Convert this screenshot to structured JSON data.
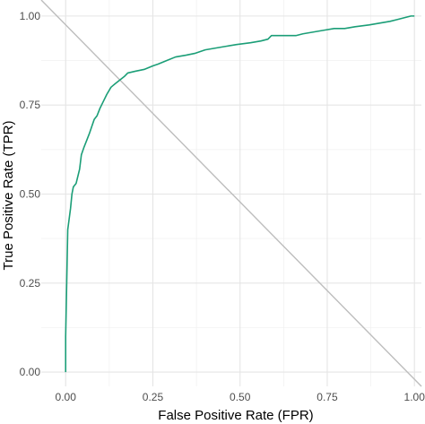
{
  "chart_data": {
    "type": "line",
    "title": "",
    "xlabel": "False Positive Rate (FPR)",
    "ylabel": "True Positive Rate (TPR)",
    "xlim": [
      -0.07,
      1.02
    ],
    "ylim": [
      -0.04,
      1.045
    ],
    "x_ticks": [
      0,
      0.25,
      0.5,
      0.75,
      1
    ],
    "x_tick_labels": [
      "0.00",
      "0.25",
      "0.50",
      "0.75",
      "1.00"
    ],
    "y_ticks": [
      0,
      0.25,
      0.5,
      0.75,
      1
    ],
    "y_tick_labels": [
      "0.00",
      "0.25",
      "0.50",
      "0.75",
      "1.00"
    ],
    "grid": true,
    "legend": "none",
    "series": [
      {
        "color": "#1b9e77",
        "points": [
          [
            0.0,
            0.0
          ],
          [
            0.0,
            0.1
          ],
          [
            0.002,
            0.2
          ],
          [
            0.004,
            0.3
          ],
          [
            0.006,
            0.4
          ],
          [
            0.01,
            0.43
          ],
          [
            0.014,
            0.46
          ],
          [
            0.018,
            0.5
          ],
          [
            0.022,
            0.52
          ],
          [
            0.03,
            0.53
          ],
          [
            0.04,
            0.57
          ],
          [
            0.045,
            0.61
          ],
          [
            0.052,
            0.63
          ],
          [
            0.06,
            0.65
          ],
          [
            0.068,
            0.67
          ],
          [
            0.075,
            0.69
          ],
          [
            0.082,
            0.71
          ],
          [
            0.09,
            0.72
          ],
          [
            0.098,
            0.74
          ],
          [
            0.108,
            0.76
          ],
          [
            0.118,
            0.78
          ],
          [
            0.13,
            0.8
          ],
          [
            0.142,
            0.81
          ],
          [
            0.155,
            0.82
          ],
          [
            0.168,
            0.83
          ],
          [
            0.178,
            0.84
          ],
          [
            0.2,
            0.845
          ],
          [
            0.225,
            0.85
          ],
          [
            0.25,
            0.86
          ],
          [
            0.265,
            0.865
          ],
          [
            0.29,
            0.875
          ],
          [
            0.315,
            0.885
          ],
          [
            0.345,
            0.89
          ],
          [
            0.37,
            0.895
          ],
          [
            0.4,
            0.905
          ],
          [
            0.43,
            0.91
          ],
          [
            0.46,
            0.915
          ],
          [
            0.49,
            0.92
          ],
          [
            0.53,
            0.925
          ],
          [
            0.56,
            0.93
          ],
          [
            0.58,
            0.935
          ],
          [
            0.59,
            0.945
          ],
          [
            0.62,
            0.945
          ],
          [
            0.66,
            0.945
          ],
          [
            0.68,
            0.95
          ],
          [
            0.71,
            0.955
          ],
          [
            0.74,
            0.96
          ],
          [
            0.77,
            0.965
          ],
          [
            0.8,
            0.965
          ],
          [
            0.83,
            0.97
          ],
          [
            0.87,
            0.975
          ],
          [
            0.9,
            0.98
          ],
          [
            0.93,
            0.985
          ],
          [
            0.95,
            0.99
          ],
          [
            0.97,
            0.995
          ],
          [
            0.99,
            1.0
          ],
          [
            1.0,
            1.0
          ]
        ]
      }
    ],
    "reference_line": {
      "color": "#bdbdbd",
      "points": [
        [
          -0.07,
          1.045
        ],
        [
          1.02,
          -0.04
        ]
      ]
    }
  }
}
